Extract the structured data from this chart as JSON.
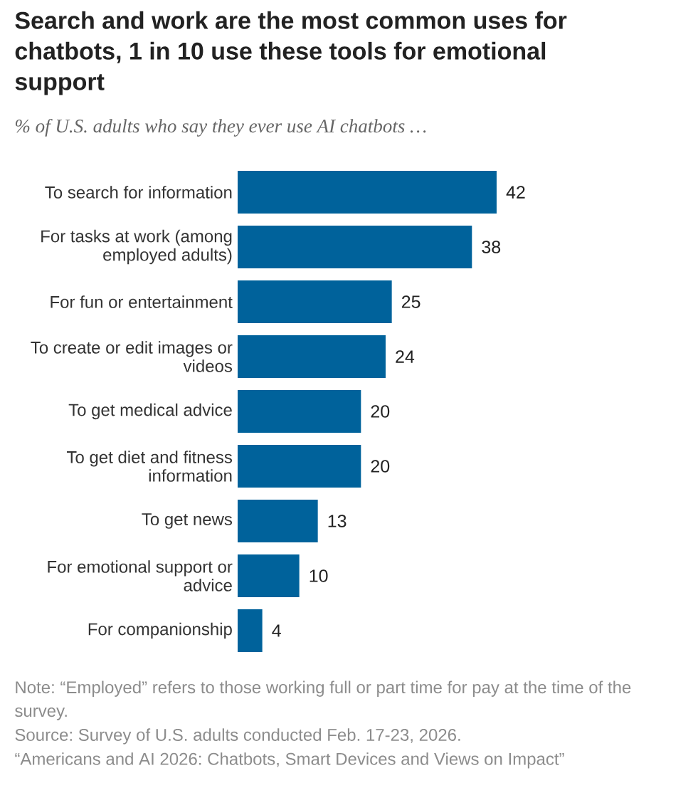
{
  "chart_data": {
    "type": "bar",
    "orientation": "horizontal",
    "title": "Search and work are the most common uses for chatbots, 1 in 10 use these tools for emotional support",
    "subtitle": "*% of U.S. adults who say they ever use AI chatbots …*",
    "categories": [
      "To search for information",
      "For tasks at work (among employed adults)",
      "For fun or entertainment",
      "To create or edit images or videos",
      "To get medical advice",
      "To get diet and fitness information",
      "To get news",
      "For emotional support or advice",
      "For companionship"
    ],
    "values": [
      42,
      38,
      25,
      24,
      20,
      20,
      13,
      10,
      4
    ],
    "color": "#00629b",
    "data_labels": true,
    "annotations": [
      "Note: “Employed” refers to those working full or part time for pay at the time of the survey.",
      "Source: Survey of U.S. adults conducted Feb. 17-23, 2026.",
      "“Americans and AI 2026: Chatbots, Smart Devices and Views on Impact”"
    ]
  }
}
